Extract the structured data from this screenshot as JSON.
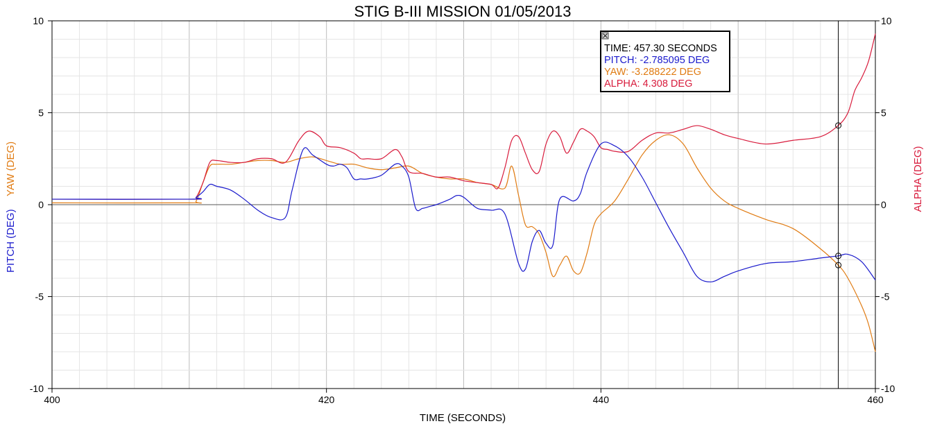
{
  "chart_data": {
    "type": "line",
    "title": "STIG B-III MISSION 01/05/2013",
    "xlabel": "TIME (SECONDS)",
    "ylabel_left_pitch": "PITCH (DEG)",
    "ylabel_left_yaw": "YAW (DEG)",
    "ylabel_right": "ALPHA (DEG)",
    "xlim": [
      400,
      460
    ],
    "ylim": [
      -10,
      10
    ],
    "ylim_right": [
      -10,
      10
    ],
    "x_ticks": [
      "400",
      "420",
      "440",
      "460"
    ],
    "y_ticks": [
      "10",
      "5",
      "0",
      "-5",
      "-10"
    ],
    "y_ticks_right": [
      "10",
      "5",
      "0",
      "-5",
      "-10"
    ],
    "grid": true,
    "cursor": {
      "time": 457.3,
      "readout": {
        "time": "TIME: 457.30 SECONDS",
        "pitch": "PITCH: -2.785095 DEG",
        "yaw": "YAW: -3.288222 DEG",
        "alpha": "ALPHA: 4.308 DEG"
      }
    },
    "colors": {
      "pitch": "#1a1acc",
      "yaw": "#e07b12",
      "alpha": "#d81b3c",
      "grid": "#c8c8c8",
      "zero_line": "#555555"
    },
    "series": [
      {
        "name": "PITCH",
        "axis": "left",
        "x": [
          400,
          410,
          410.5,
          411,
          411.5,
          412,
          413,
          414,
          415,
          416,
          417,
          417.5,
          418.3,
          419,
          420,
          420.5,
          421,
          421.5,
          422,
          422.5,
          423,
          424,
          425,
          425.5,
          426,
          426.5,
          427,
          427.5,
          428,
          429,
          429.5,
          430,
          431,
          432,
          433,
          434,
          434.5,
          435,
          435.5,
          436,
          436.5,
          437,
          438,
          438.5,
          439,
          440,
          441,
          442,
          443,
          444,
          445,
          446,
          447,
          448,
          449,
          450,
          452,
          454,
          456,
          457.3,
          458,
          459,
          460
        ],
        "y": [
          0.3,
          0.3,
          0.4,
          0.7,
          1.1,
          1.0,
          0.8,
          0.3,
          -0.3,
          -0.7,
          -0.7,
          0.8,
          3.0,
          2.7,
          2.2,
          2.1,
          2.2,
          2.0,
          1.4,
          1.4,
          1.4,
          1.6,
          2.2,
          2.1,
          1.5,
          -0.2,
          -0.2,
          -0.1,
          0.0,
          0.3,
          0.5,
          0.4,
          -0.2,
          -0.3,
          -0.5,
          -3.2,
          -3.5,
          -2.0,
          -1.4,
          -2.1,
          -2.2,
          0.3,
          0.2,
          0.6,
          1.8,
          3.3,
          3.2,
          2.6,
          1.5,
          0.1,
          -1.3,
          -2.6,
          -3.9,
          -4.2,
          -3.9,
          -3.6,
          -3.2,
          -3.1,
          -2.9,
          -2.785,
          -2.7,
          -3.1,
          -4.1
        ]
      },
      {
        "name": "YAW",
        "axis": "left",
        "x": [
          400,
          410,
          410.5,
          411,
          411.5,
          412,
          413,
          414,
          415,
          416,
          417,
          418,
          419,
          420,
          421,
          422,
          423,
          424,
          425,
          426,
          427,
          428,
          429,
          430,
          431,
          432,
          433,
          433.5,
          434,
          434.5,
          435,
          435.5,
          436,
          436.5,
          437,
          437.5,
          438,
          438.5,
          439,
          439.5,
          440,
          441,
          442,
          443,
          444,
          445,
          446,
          447,
          448,
          449,
          450,
          452,
          454,
          456,
          457.3,
          458,
          459,
          459.5,
          460
        ],
        "y": [
          0.1,
          0.1,
          0.2,
          1.2,
          2.1,
          2.2,
          2.2,
          2.3,
          2.4,
          2.4,
          2.3,
          2.5,
          2.6,
          2.4,
          2.2,
          2.2,
          2.0,
          1.9,
          2.0,
          2.1,
          1.7,
          1.5,
          1.4,
          1.4,
          1.2,
          1.1,
          0.9,
          2.1,
          0.5,
          -1.1,
          -1.2,
          -1.6,
          -2.6,
          -3.9,
          -3.3,
          -2.8,
          -3.6,
          -3.7,
          -2.6,
          -1.1,
          -0.5,
          0.2,
          1.4,
          2.7,
          3.5,
          3.8,
          3.3,
          2.0,
          0.9,
          0.2,
          -0.2,
          -0.8,
          -1.3,
          -2.4,
          -3.288,
          -4.0,
          -5.5,
          -6.5,
          -8.0
        ]
      },
      {
        "name": "ALPHA",
        "axis": "right",
        "x": [
          400,
          410,
          410.5,
          411,
          411.5,
          412,
          413,
          414,
          415,
          416,
          417,
          418,
          418.7,
          419.5,
          420,
          421,
          422,
          422.5,
          423,
          424,
          425,
          425.5,
          426,
          427,
          428,
          429,
          430,
          431,
          432,
          432.5,
          433,
          433.5,
          434,
          434.5,
          435,
          435.5,
          436,
          436.5,
          437,
          437.5,
          438,
          438.5,
          439,
          439.5,
          440,
          440.5,
          441,
          442,
          443,
          444,
          445,
          446,
          447,
          448,
          449,
          450,
          452,
          454,
          456,
          457.3,
          458,
          458.5,
          459,
          459.5,
          460
        ],
        "y": [
          0.3,
          0.3,
          0.4,
          1.2,
          2.3,
          2.4,
          2.3,
          2.3,
          2.5,
          2.5,
          2.3,
          3.5,
          4.0,
          3.7,
          3.2,
          3.1,
          2.8,
          2.5,
          2.5,
          2.5,
          3.0,
          2.6,
          1.8,
          1.7,
          1.5,
          1.5,
          1.3,
          1.2,
          1.1,
          0.9,
          2.0,
          3.5,
          3.7,
          2.8,
          1.9,
          1.8,
          3.3,
          4.0,
          3.7,
          2.8,
          3.4,
          4.1,
          4.0,
          3.7,
          3.1,
          3.0,
          2.9,
          2.9,
          3.5,
          3.9,
          3.9,
          4.1,
          4.3,
          4.1,
          3.8,
          3.6,
          3.3,
          3.5,
          3.7,
          4.308,
          5.0,
          6.2,
          6.9,
          7.8,
          9.3
        ]
      }
    ]
  }
}
